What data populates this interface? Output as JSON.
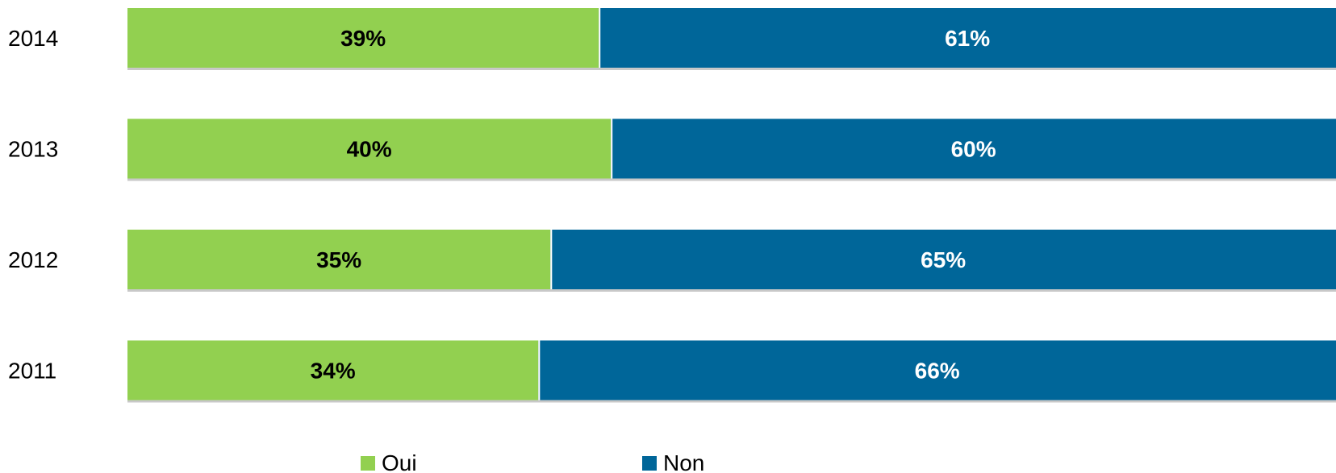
{
  "chart_data": {
    "type": "bar",
    "orientation": "horizontal",
    "stacked": true,
    "categories": [
      "2014",
      "2013",
      "2012",
      "2011"
    ],
    "series": [
      {
        "name": "Oui",
        "values": [
          39,
          40,
          35,
          34
        ],
        "labels": [
          "39%",
          "40%",
          "35%",
          "34%"
        ],
        "color": "#92D050",
        "label_color": "#000000"
      },
      {
        "name": "Non",
        "values": [
          61,
          60,
          65,
          66
        ],
        "labels": [
          "61%",
          "60%",
          "65%",
          "66%"
        ],
        "color": "#006699",
        "label_color": "#ffffff"
      }
    ],
    "xlim": [
      0,
      100
    ],
    "grid": false,
    "legend_position": "bottom"
  }
}
